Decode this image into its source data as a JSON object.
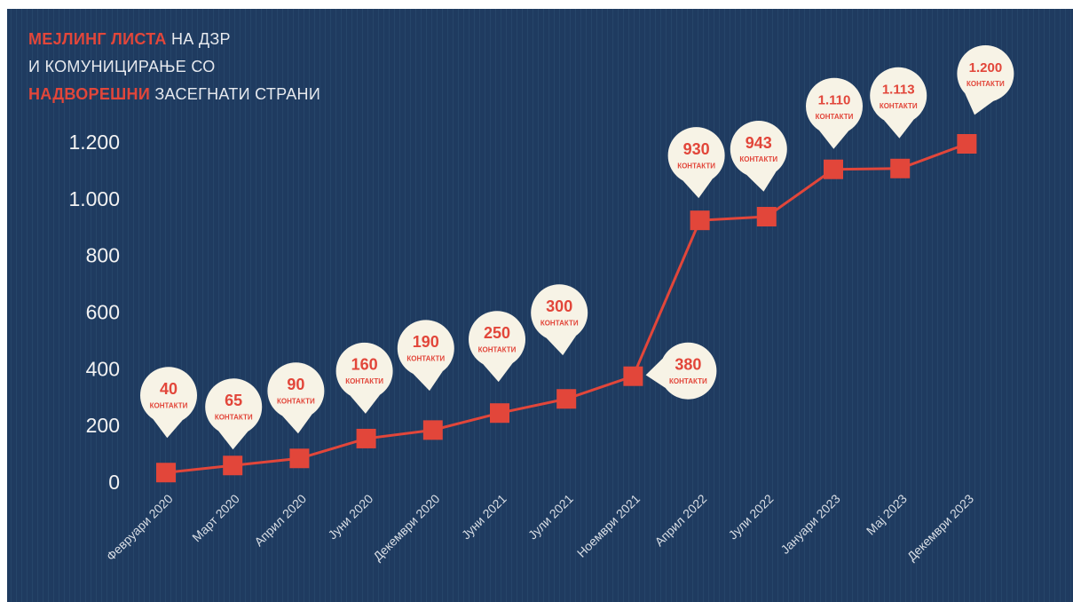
{
  "chart_data": {
    "type": "line",
    "title_lines": [
      [
        {
          "text": "МЕЈЛИНГ ЛИСТА",
          "highlight": true
        },
        {
          "text": " НА ДЗР",
          "highlight": false
        }
      ],
      [
        {
          "text": "И КОМУНИЦИРАЊЕ СО",
          "highlight": false
        }
      ],
      [
        {
          "text": "НАДВОРЕШНИ",
          "highlight": true
        },
        {
          "text": " ЗАСЕГНАТИ СТРАНИ",
          "highlight": false
        }
      ]
    ],
    "categories": [
      "Февруари 2020",
      "Март 2020",
      "Април 2020",
      "Јуни 2020",
      "Декември 2020",
      "Јуни 2021",
      "Јули 2021",
      "Ноември 2021",
      "Април 2022",
      "Јули 2022",
      "Јануари 2023",
      "Мај 2023",
      "Декември 2023"
    ],
    "values": [
      40,
      65,
      90,
      160,
      190,
      250,
      300,
      380,
      930,
      943,
      1110,
      1113,
      1200
    ],
    "value_labels": [
      "40",
      "65",
      "90",
      "160",
      "190",
      "250",
      "300",
      "380",
      "930",
      "943",
      "1.110",
      "1.113",
      "1.200"
    ],
    "value_unit": "КОНТАКТИ",
    "color": "#e2463a",
    "ylim": [
      0,
      1200
    ],
    "yticks": [
      0,
      200,
      400,
      600,
      800,
      {
        "value": 1000,
        "label": "1.000"
      },
      {
        "value": 1200,
        "label": "1.200"
      }
    ]
  }
}
